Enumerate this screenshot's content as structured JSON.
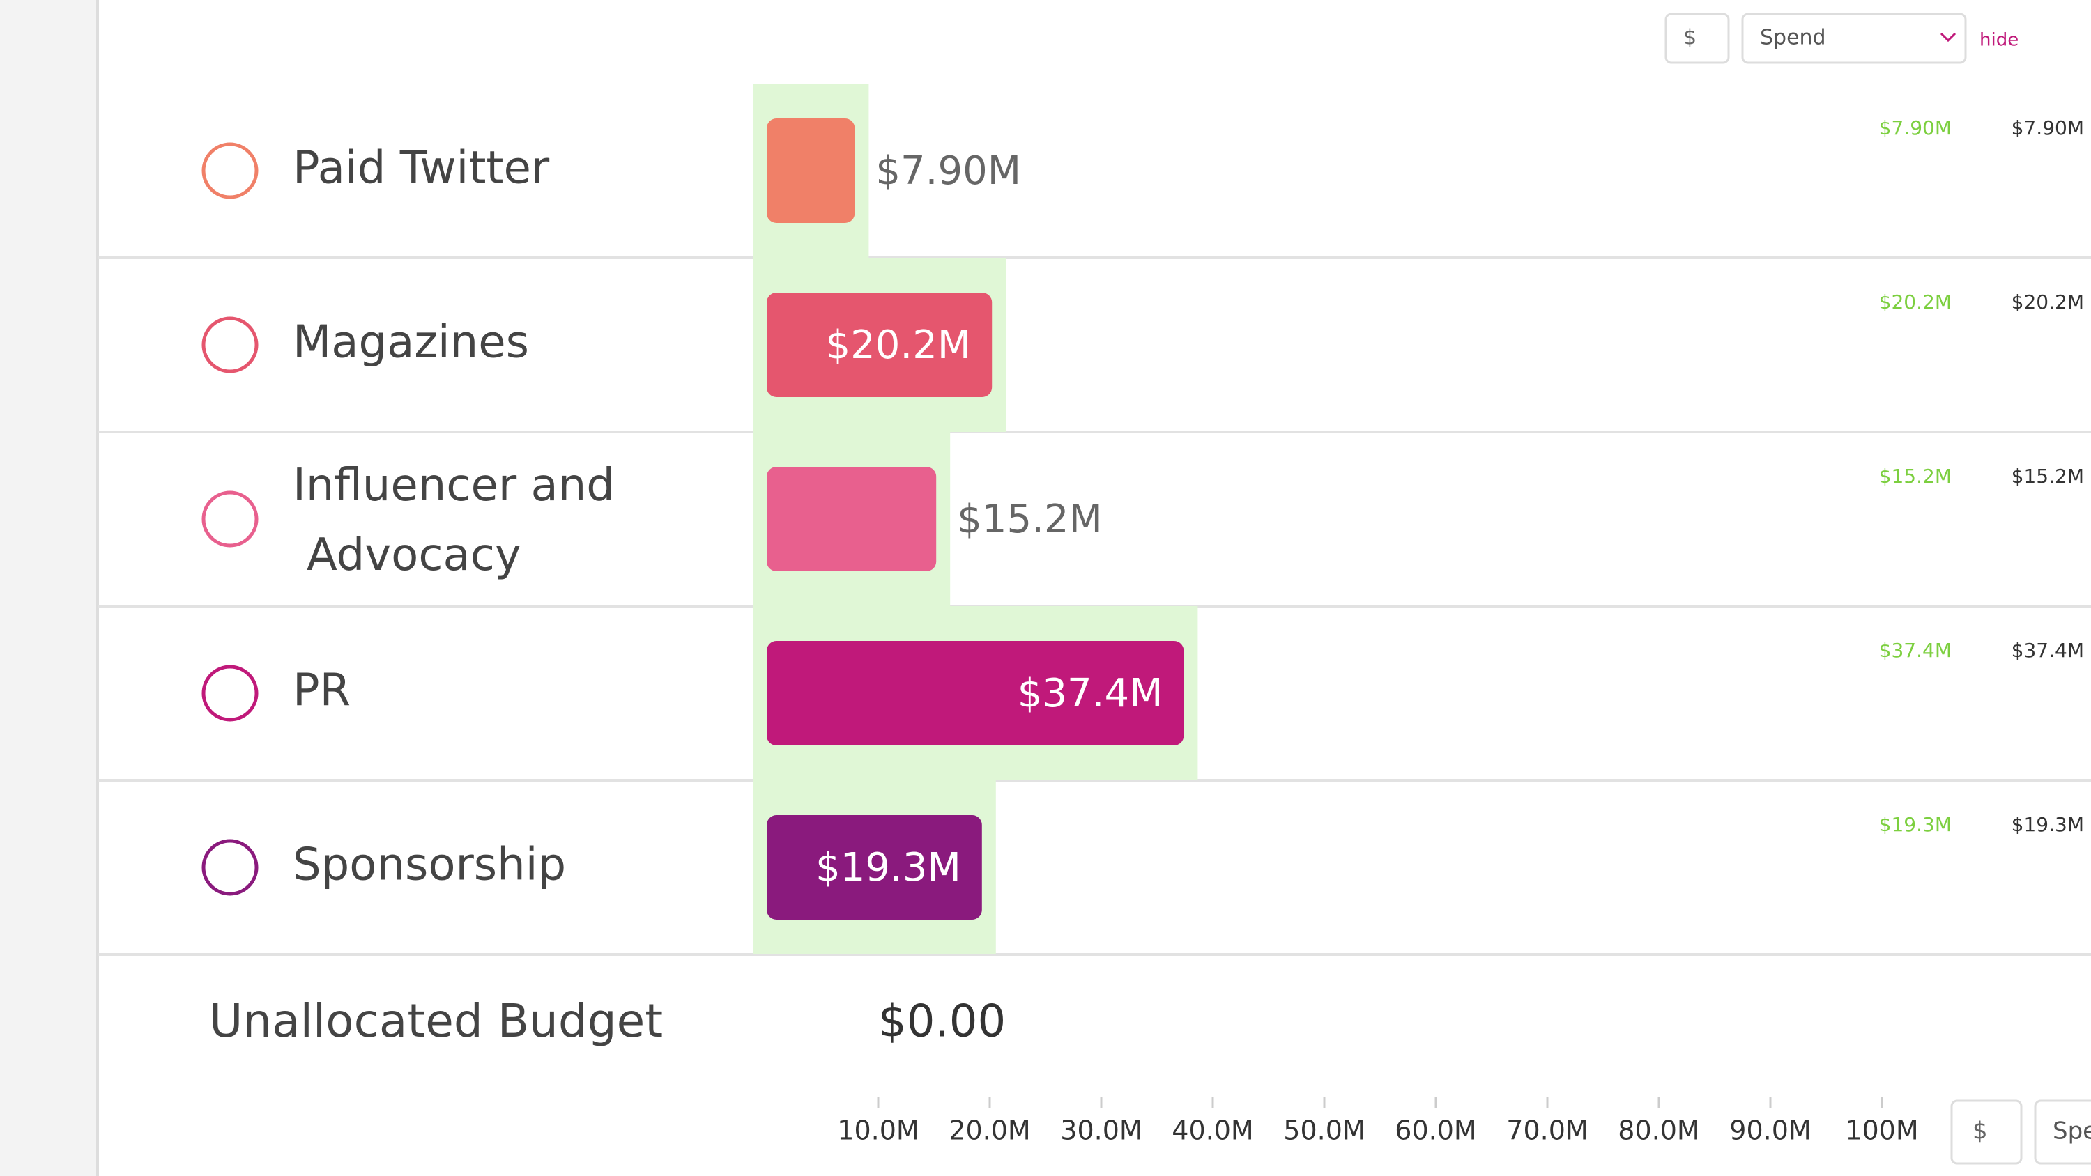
{
  "chart_data": {
    "type": "bar",
    "categories": [
      "Paid Twitter",
      "Magazines",
      "Influencer and Advocacy",
      "PR",
      "Sponsorship"
    ],
    "values": [
      7.9,
      20.2,
      15.2,
      37.4,
      19.3
    ],
    "value_labels": [
      "$7.90M",
      "$20.2M",
      "$15.2M",
      "$37.4M",
      "$19.3M"
    ],
    "colors": [
      "#f08068",
      "#e5566e",
      "#e8608e",
      "#c0197a",
      "#8a1a7d"
    ],
    "xlim": [
      0,
      100
    ],
    "xticks": [
      {
        "value": 10,
        "label": "10.0M"
      },
      {
        "value": 20,
        "label": "20.0M"
      },
      {
        "value": 30,
        "label": "30.0M"
      },
      {
        "value": 40,
        "label": "40.0M"
      },
      {
        "value": 50,
        "label": "50.0M"
      },
      {
        "value": 60,
        "label": "60.0M"
      },
      {
        "value": 70,
        "label": "70.0M"
      },
      {
        "value": 80,
        "label": "80.0M"
      },
      {
        "value": 90,
        "label": "90.0M"
      },
      {
        "value": 100,
        "label": "100M"
      }
    ]
  },
  "controls": {
    "currency": "$",
    "metric": "Spend",
    "hide": "hide"
  },
  "unallocated": {
    "label": "Unallocated Budget",
    "amount": "$0.00"
  }
}
